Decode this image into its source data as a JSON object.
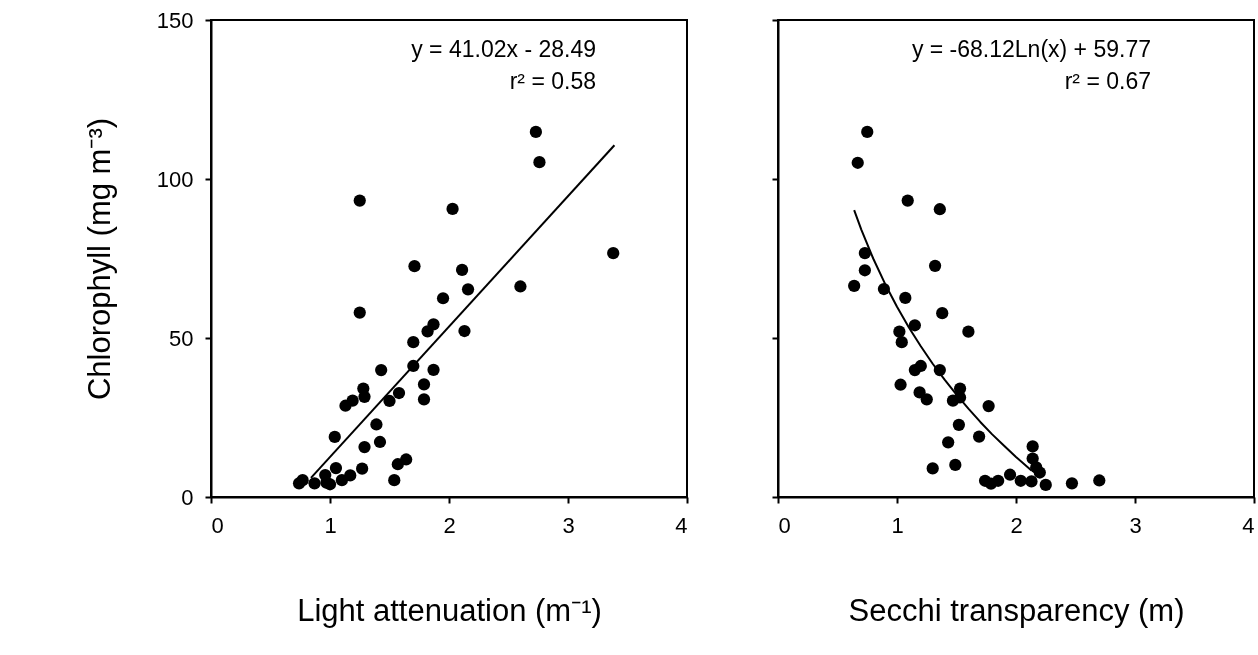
{
  "chart_data": [
    {
      "type": "scatter",
      "xlabel": "Light attenuation (m⁻¹)",
      "ylabel": "Chlorophyll (mg m⁻³)",
      "xlim": [
        0,
        4
      ],
      "xticks": [
        0,
        1,
        2,
        3,
        4
      ],
      "ylim": [
        0,
        150
      ],
      "yticks": [
        0,
        50,
        100,
        150
      ],
      "grid": false,
      "annotations": [
        "y = 41.02x - 28.49",
        "r² = 0.58"
      ],
      "series": [
        {
          "marker": "circle",
          "color": "#000000",
          "x": [
            2.73,
            2.76,
            1.25,
            2.03,
            3.38,
            1.71,
            2.11,
            2.16,
            2.6,
            1.95,
            1.25,
            1.87,
            1.82,
            2.13,
            1.7,
            1.7,
            1.43,
            1.87,
            1.28,
            1.79,
            1.58,
            1.29,
            1.19,
            1.13,
            1.5,
            1.79,
            1.39,
            1.04,
            1.42,
            1.29,
            1.64,
            1.57,
            1.05,
            1.27,
            1.17,
            1.54,
            0.96,
            1.1,
            0.87,
            1.0,
            0.97,
            0.74,
            0.77
          ],
          "values": [
            114.8,
            105.3,
            93.2,
            90.6,
            76.7,
            72.6,
            71.4,
            65.3,
            66.2,
            62.5,
            58.0,
            54.3,
            52.1,
            52.2,
            48.7,
            41.2,
            39.9,
            40.0,
            34.1,
            35.4,
            32.7,
            31.5,
            30.3,
            28.7,
            30.2,
            30.7,
            22.8,
            18.9,
            17.3,
            15.7,
            11.8,
            10.3,
            9.1,
            8.9,
            6.8,
            5.3,
            6.9,
            5.3,
            4.3,
            4.0,
            4.5,
            4.3,
            5.3
          ]
        },
        {
          "type": "line",
          "marker": "none",
          "color": "#000000",
          "x": [
            0.84,
            3.39
          ],
          "values": [
            6.0,
            110.6
          ]
        }
      ]
    },
    {
      "type": "scatter",
      "xlabel": "Secchi transparency (m)",
      "xlim": [
        0,
        4
      ],
      "xticks": [
        0,
        1,
        2,
        3,
        4
      ],
      "ylim": [
        0,
        150
      ],
      "yticks": [
        0,
        50,
        100,
        150
      ],
      "tick_labels": "x",
      "grid": false,
      "annotations": [
        "y = -68.12Ln(x) + 59.77",
        "r² = 0.67"
      ],
      "series": [
        {
          "marker": "circle",
          "color": "#000000",
          "x": [
            0.75,
            0.67,
            1.09,
            1.36,
            0.73,
            0.73,
            1.32,
            0.64,
            0.89,
            1.07,
            1.38,
            1.15,
            1.02,
            1.6,
            1.04,
            1.2,
            1.15,
            1.36,
            1.03,
            1.19,
            1.25,
            1.53,
            1.53,
            1.47,
            1.77,
            1.52,
            1.69,
            1.43,
            2.14,
            1.3,
            1.49,
            2.14,
            2.17,
            2.2,
            1.95,
            1.74,
            1.79,
            1.85,
            2.04,
            2.13,
            2.25,
            2.47,
            2.7
          ],
          "values": [
            114.8,
            105.1,
            93.2,
            90.5,
            76.7,
            71.3,
            72.7,
            66.4,
            65.4,
            62.6,
            57.8,
            54.0,
            52.0,
            52.0,
            48.7,
            41.2,
            39.9,
            39.9,
            35.3,
            32.9,
            30.7,
            34.1,
            31.3,
            30.3,
            28.6,
            22.7,
            19.0,
            17.2,
            15.9,
            9.0,
            10.1,
            12.1,
            9.3,
            7.7,
            7.0,
            5.1,
            4.2,
            5.1,
            5.1,
            4.9,
            3.8,
            4.3,
            5.2
          ]
        },
        {
          "type": "line",
          "marker": "none",
          "color": "#000000",
          "x": [
            0.64,
            0.7,
            0.8,
            0.9,
            1.0,
            1.1,
            1.2,
            1.3,
            1.4,
            1.5,
            1.6,
            1.7,
            1.8,
            1.9,
            2.0,
            2.13
          ],
          "values": [
            90.2,
            84.1,
            75.0,
            67.0,
            59.8,
            53.3,
            47.4,
            41.9,
            36.9,
            32.2,
            27.8,
            23.6,
            19.7,
            16.1,
            12.6,
            8.3
          ]
        }
      ]
    }
  ]
}
